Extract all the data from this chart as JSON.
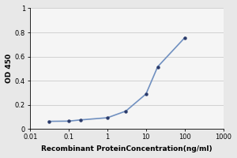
{
  "x": [
    0.03,
    0.1,
    0.2,
    1.0,
    3.0,
    10.0,
    20.0,
    100.0
  ],
  "y": [
    0.063,
    0.065,
    0.075,
    0.093,
    0.148,
    0.29,
    0.515,
    0.755
  ],
  "line_color": "#7090c0",
  "marker_color": "#2a3a6a",
  "marker_size": 2.8,
  "line_width": 1.2,
  "xlabel": "Recombinant ProteinConcentration(ng/ml)",
  "ylabel": "OD 450",
  "xlim_log": [
    -2,
    3
  ],
  "ylim": [
    0,
    1.0
  ],
  "yticks": [
    0,
    0.2,
    0.4,
    0.6,
    0.8,
    1
  ],
  "xticks": [
    0.01,
    0.1,
    1,
    10,
    100,
    1000
  ],
  "xtick_labels": [
    "0.01",
    "0.1",
    "1",
    "10",
    "100",
    "1000"
  ],
  "background_color": "#e8e8e8",
  "plot_bg_color": "#f5f5f5",
  "xlabel_fontsize": 6.5,
  "ylabel_fontsize": 6.5,
  "tick_fontsize": 6.0
}
